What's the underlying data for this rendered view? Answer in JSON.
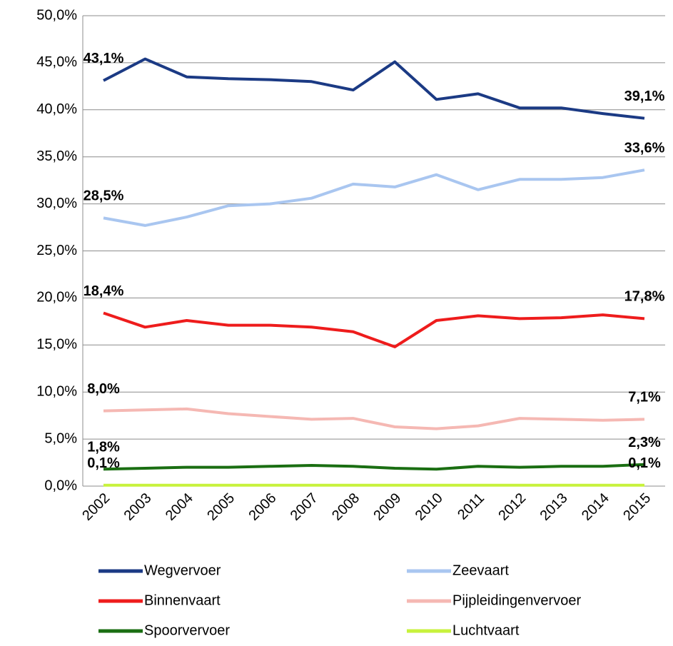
{
  "chart_data": {
    "type": "line",
    "categories": [
      "2002",
      "2003",
      "2004",
      "2005",
      "2006",
      "2007",
      "2008",
      "2009",
      "2010",
      "2011",
      "2012",
      "2013",
      "2014",
      "2015"
    ],
    "ylim": [
      0,
      50
    ],
    "yticks": [
      {
        "value": 0,
        "label": "0,0%"
      },
      {
        "value": 5,
        "label": "5,0%"
      },
      {
        "value": 10,
        "label": "10,0%"
      },
      {
        "value": 15,
        "label": "15,0%"
      },
      {
        "value": 20,
        "label": "20,0%"
      },
      {
        "value": 25,
        "label": "25,0%"
      },
      {
        "value": 30,
        "label": "30,0%"
      },
      {
        "value": 35,
        "label": "35,0%"
      },
      {
        "value": 40,
        "label": "40,0%"
      },
      {
        "value": 45,
        "label": "45,0%"
      },
      {
        "value": 50,
        "label": "50,0%"
      }
    ],
    "grid": true,
    "legend": "bottom",
    "series": [
      {
        "name": "Wegvervoer",
        "color": "#1b3a84",
        "values": [
          43.1,
          45.4,
          43.5,
          43.3,
          43.2,
          43.0,
          42.1,
          45.1,
          41.1,
          41.7,
          40.2,
          40.2,
          39.6,
          39.1
        ],
        "value_labels": [
          "43,1%",
          null,
          null,
          null,
          null,
          null,
          null,
          null,
          null,
          null,
          null,
          null,
          null,
          "39,1%"
        ]
      },
      {
        "name": "Zeevaart",
        "color": "#a9c6f0",
        "values": [
          28.5,
          27.7,
          28.6,
          29.8,
          30.0,
          30.6,
          32.1,
          31.8,
          33.1,
          31.5,
          32.6,
          32.6,
          32.8,
          33.6
        ],
        "value_labels": [
          "28,5%",
          null,
          null,
          null,
          null,
          null,
          null,
          null,
          null,
          null,
          null,
          null,
          null,
          "33,6%"
        ]
      },
      {
        "name": "Binnenvaart",
        "color": "#ee1c1c",
        "values": [
          18.4,
          16.9,
          17.6,
          17.1,
          17.1,
          16.9,
          16.4,
          14.8,
          17.6,
          18.1,
          17.8,
          17.9,
          18.2,
          17.8
        ],
        "value_labels": [
          "18,4%",
          null,
          null,
          null,
          null,
          null,
          null,
          null,
          null,
          null,
          null,
          null,
          null,
          "17,8%"
        ]
      },
      {
        "name": "Pijpleidingenvervoer",
        "color": "#f5b8b3",
        "values": [
          8.0,
          8.1,
          8.2,
          7.7,
          7.4,
          7.1,
          7.2,
          6.3,
          6.1,
          6.4,
          7.2,
          7.1,
          7.0,
          7.1
        ],
        "value_labels": [
          "8,0%",
          null,
          null,
          null,
          null,
          null,
          null,
          null,
          null,
          null,
          null,
          null,
          null,
          "7,1%"
        ]
      },
      {
        "name": "Spoorvervoer",
        "color": "#1a6e12",
        "values": [
          1.8,
          1.9,
          2.0,
          2.0,
          2.1,
          2.2,
          2.1,
          1.9,
          1.8,
          2.1,
          2.0,
          2.1,
          2.1,
          2.3
        ],
        "value_labels": [
          "1,8%",
          null,
          null,
          null,
          null,
          null,
          null,
          null,
          null,
          null,
          null,
          null,
          null,
          "2,3%"
        ]
      },
      {
        "name": "Luchtvaart",
        "color": "#c7f23c",
        "values": [
          0.1,
          0.1,
          0.1,
          0.1,
          0.1,
          0.1,
          0.1,
          0.1,
          0.1,
          0.1,
          0.1,
          0.1,
          0.1,
          0.1
        ],
        "value_labels": [
          "0,1%",
          null,
          null,
          null,
          null,
          null,
          null,
          null,
          null,
          null,
          null,
          null,
          null,
          "0,1%"
        ]
      }
    ]
  }
}
